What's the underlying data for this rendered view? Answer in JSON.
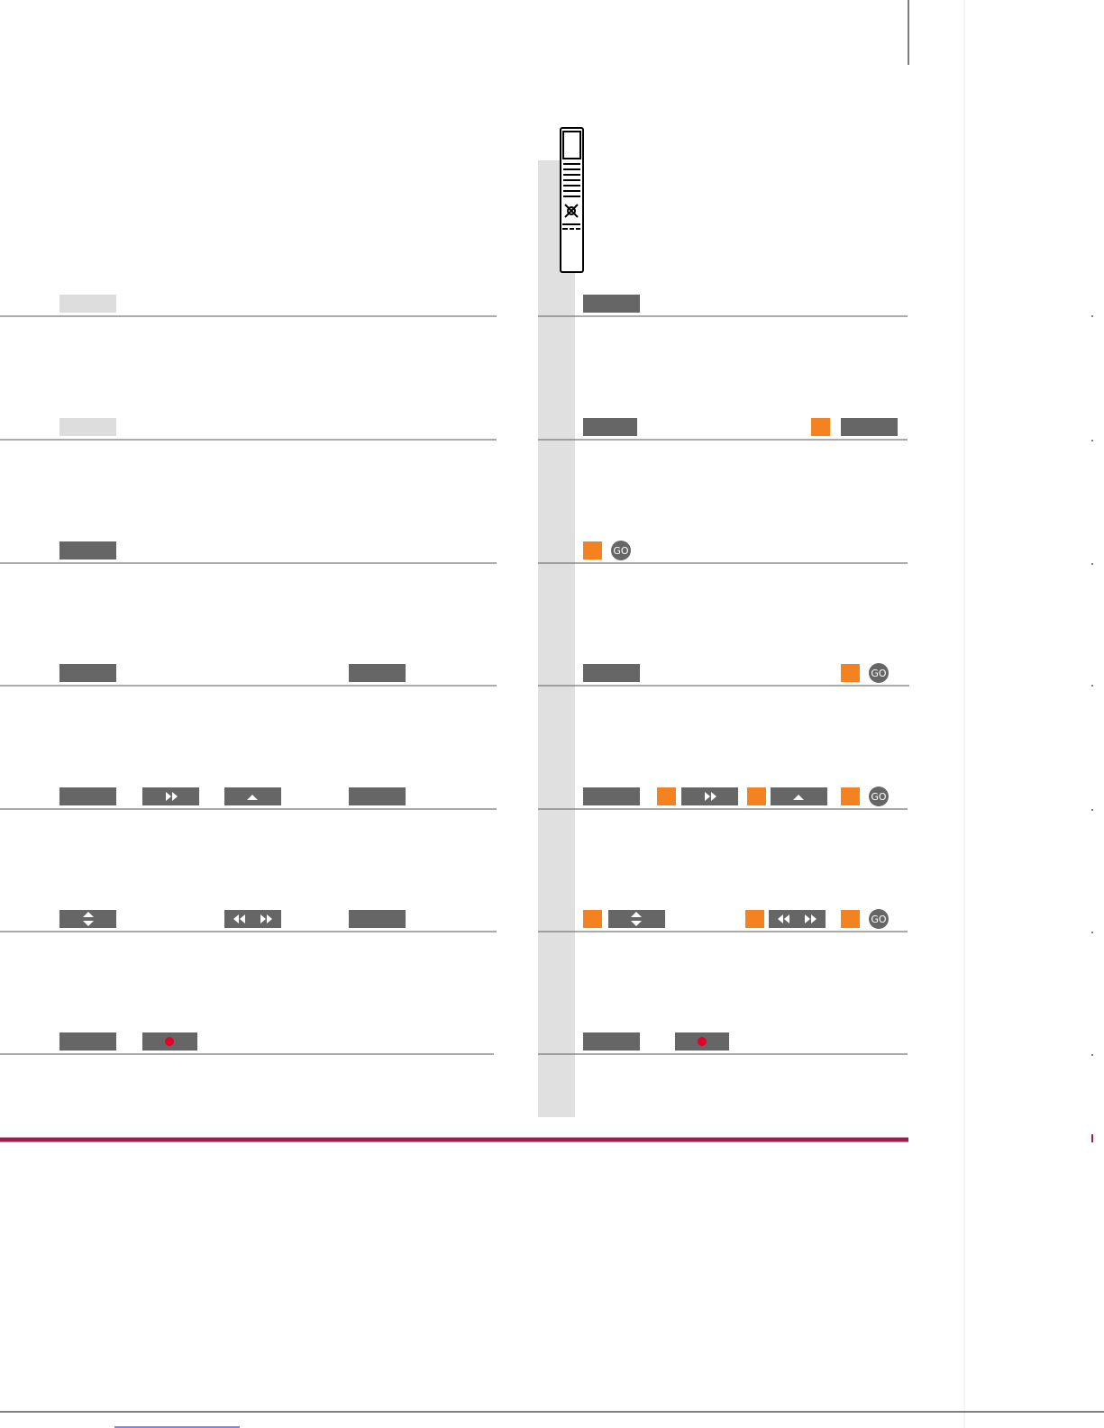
{
  "go_buttons": [
    "GO",
    "GO",
    "GO",
    "GO"
  ]
}
